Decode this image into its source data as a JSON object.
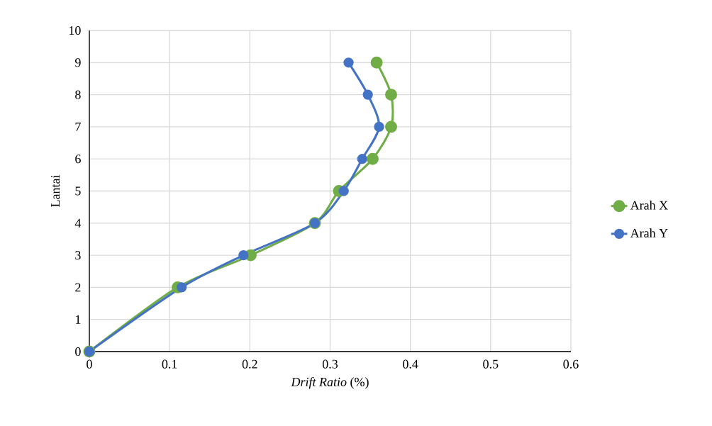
{
  "chart_data": {
    "type": "line",
    "xlabel": "*Drift Ratio* (%)",
    "ylabel": "Lantai",
    "xlim": [
      0,
      0.6
    ],
    "xticks": [
      0,
      0.1,
      0.2,
      0.3,
      0.4,
      0.5,
      0.6
    ],
    "ylim": [
      0,
      10
    ],
    "yticks": [
      0,
      1,
      2,
      3,
      4,
      5,
      6,
      7,
      8,
      9,
      10
    ],
    "grid": true,
    "legend": "right",
    "marker": "circle",
    "line_style": "solid",
    "series": [
      {
        "name": "Arah X",
        "color": "#70ad47",
        "x": [
          0,
          0.11,
          0.201,
          0.281,
          0.311,
          0.353,
          0.376,
          0.376,
          0.358
        ],
        "values": [
          0,
          2,
          3,
          4,
          5,
          6,
          7,
          8,
          9
        ]
      },
      {
        "name": "Arah Y",
        "color": "#4472c4",
        "x": [
          0,
          0.115,
          0.192,
          0.281,
          0.317,
          0.34,
          0.361,
          0.347,
          0.323
        ],
        "values": [
          0,
          2,
          3,
          4,
          5,
          6,
          7,
          8,
          9
        ]
      }
    ]
  }
}
